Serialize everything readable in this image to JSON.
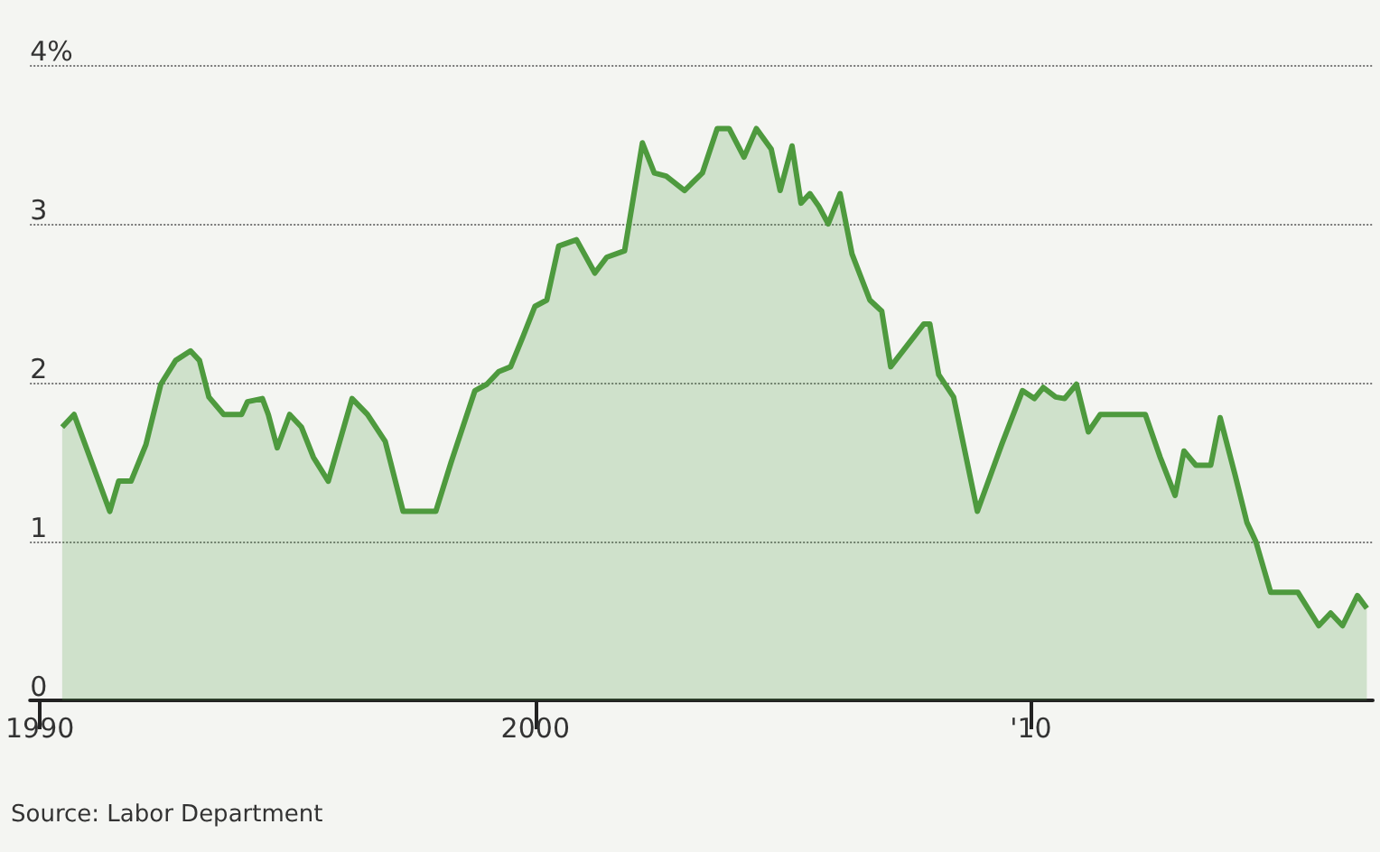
{
  "chart_data": {
    "type": "area",
    "x": [
      1990.45,
      1990.69,
      1991.41,
      1991.59,
      1991.84,
      1992.14,
      1992.44,
      1992.74,
      1993.04,
      1993.22,
      1993.41,
      1993.71,
      1994.07,
      1994.19,
      1994.49,
      1994.61,
      1994.79,
      1995.04,
      1995.28,
      1995.52,
      1995.82,
      1996.3,
      1996.61,
      1996.97,
      1997.33,
      1997.99,
      1998.3,
      1998.78,
      1999.02,
      1999.26,
      1999.5,
      1999.75,
      1999.99,
      2000.23,
      2000.47,
      2000.83,
      2001.2,
      2001.44,
      2001.8,
      2002.16,
      2002.4,
      2002.64,
      2003.01,
      2003.37,
      2003.67,
      2003.91,
      2004.21,
      2004.46,
      2004.76,
      2004.94,
      2005.18,
      2005.36,
      2005.54,
      2005.72,
      2005.91,
      2006.15,
      2006.39,
      2006.75,
      2006.99,
      2007.17,
      2007.84,
      2007.96,
      2008.14,
      2008.44,
      2008.92,
      2009.41,
      2009.83,
      2010.07,
      2010.25,
      2010.5,
      2010.68,
      2010.92,
      2011.16,
      2011.4,
      2012.31,
      2012.61,
      2012.91,
      2013.09,
      2013.33,
      2013.63,
      2013.82,
      2014.12,
      2014.36,
      2014.54,
      2014.84,
      2015.39,
      2015.81,
      2016.05,
      2016.29,
      2016.59,
      2016.78
    ],
    "series": [
      {
        "color": "#4e9a3e",
        "values": [
          1.72,
          1.8,
          1.19,
          1.38,
          1.38,
          1.61,
          1.99,
          2.14,
          2.2,
          2.14,
          1.91,
          1.8,
          1.8,
          1.88,
          1.9,
          1.8,
          1.59,
          1.8,
          1.72,
          1.53,
          1.38,
          1.9,
          1.8,
          1.63,
          1.19,
          1.19,
          1.5,
          1.95,
          1.99,
          2.07,
          2.1,
          2.29,
          2.48,
          2.52,
          2.86,
          2.9,
          2.69,
          2.79,
          2.83,
          3.51,
          3.32,
          3.3,
          3.21,
          3.32,
          3.6,
          3.6,
          3.42,
          3.6,
          3.47,
          3.21,
          3.49,
          3.13,
          3.19,
          3.11,
          3.0,
          3.19,
          2.81,
          2.52,
          2.45,
          2.1,
          2.37,
          2.37,
          2.05,
          1.91,
          1.19,
          1.61,
          1.95,
          1.9,
          1.97,
          1.91,
          1.9,
          1.99,
          1.69,
          1.8,
          1.8,
          1.53,
          1.29,
          1.57,
          1.48,
          1.48,
          1.78,
          1.42,
          1.12,
          1.0,
          0.68,
          0.68,
          0.47,
          0.55,
          0.47,
          0.66,
          0.58
        ]
      }
    ],
    "xlim": [
      1989.8,
      2016.9
    ],
    "xticks": [
      1990,
      2000,
      {
        "value": 2010,
        "label": "'10"
      }
    ],
    "ylim": [
      0,
      4
    ],
    "yticks": [
      0,
      1,
      2,
      3,
      {
        "value": 4,
        "label": "4%"
      }
    ],
    "grid": "y",
    "marker": "none",
    "line_style": "solid",
    "annotations": [
      "Source: Labor Department"
    ]
  }
}
